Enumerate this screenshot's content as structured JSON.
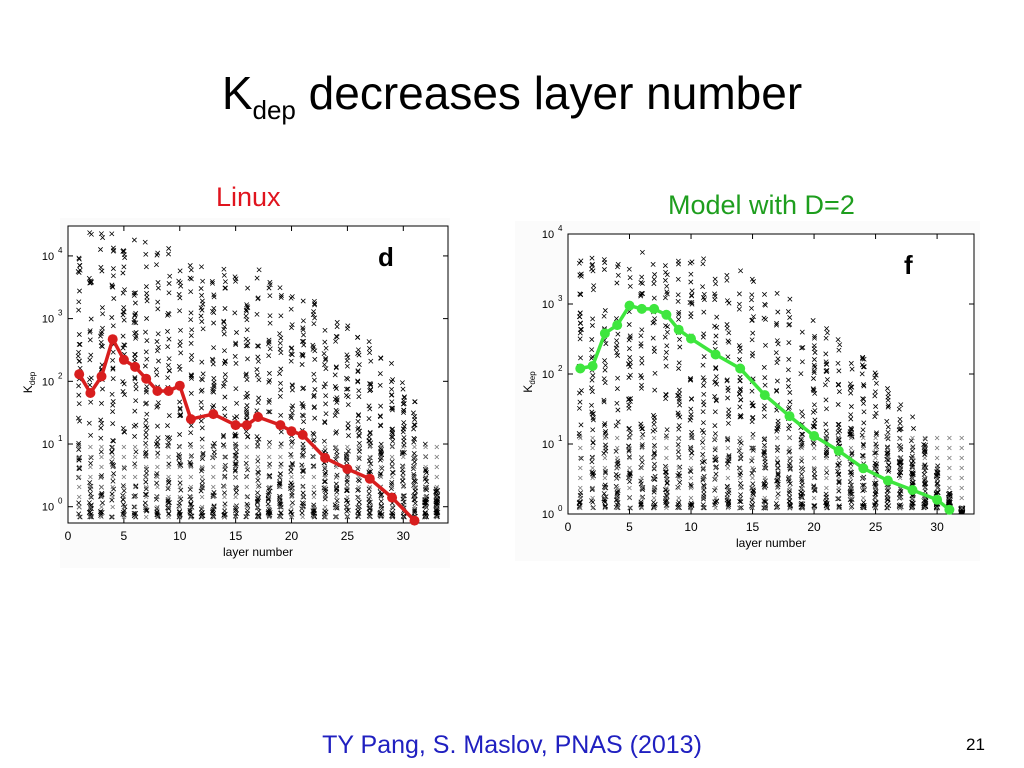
{
  "slide": {
    "title_main": "K",
    "title_sub": "dep",
    "title_rest": " decreases layer number",
    "footer": "TY Pang, S. Maslov, PNAS  (2013)",
    "page_number": "21"
  },
  "chart_data": [
    {
      "type": "scatter",
      "caption": "Linux",
      "caption_color": "#e0141e",
      "panel_label": "d",
      "xlabel": "layer number",
      "ylabel_main": "K",
      "ylabel_sub": "dep",
      "xlim": [
        0,
        34
      ],
      "ylim": [
        0.55,
        30000
      ],
      "log_y": true,
      "x_ticks": [
        0,
        5,
        10,
        15,
        20,
        25,
        30
      ],
      "y_ticks": [
        {
          "value": 1,
          "base": "10",
          "exp": "0"
        },
        {
          "value": 10,
          "base": "10",
          "exp": "1"
        },
        {
          "value": 100,
          "base": "10",
          "exp": "2"
        },
        {
          "value": 1000,
          "base": "10",
          "exp": "3"
        },
        {
          "value": 10000,
          "base": "10",
          "exp": "4"
        }
      ],
      "grid": false,
      "scatter_color": "#000000",
      "scatter_max": [
        25000,
        25000,
        25000,
        25000,
        25000,
        20000,
        18000,
        15000,
        14000,
        12000,
        11000,
        9000,
        8000,
        7000,
        6000,
        6000,
        6000,
        5000,
        4000,
        3000,
        2500,
        2000,
        1500,
        1000,
        900,
        700,
        500,
        300,
        200,
        100,
        50,
        10,
        2
      ],
      "series": [
        {
          "color": "#d81e1e",
          "x": [
            1,
            2,
            3,
            4,
            5,
            6,
            7,
            8,
            9,
            10,
            11,
            13,
            15,
            16,
            17,
            19,
            20,
            21,
            23,
            25,
            27,
            29,
            31
          ],
          "y": [
            130,
            65,
            120,
            470,
            220,
            170,
            110,
            70,
            70,
            85,
            25,
            30,
            20,
            20,
            27,
            20,
            16,
            14,
            6,
            4,
            2.8,
            1.4,
            0.6
          ]
        }
      ]
    },
    {
      "type": "scatter",
      "caption": "Model with D=2",
      "caption_color": "#1e9e1e",
      "panel_label": "f",
      "xlabel": "layer number",
      "ylabel_main": "K",
      "ylabel_sub": "dep",
      "xlim": [
        0,
        33
      ],
      "ylim": [
        1,
        10000
      ],
      "log_y": true,
      "x_ticks": [
        0,
        5,
        10,
        15,
        20,
        25,
        30
      ],
      "y_ticks": [
        {
          "value": 1,
          "base": "10",
          "exp": "0"
        },
        {
          "value": 10,
          "base": "10",
          "exp": "1"
        },
        {
          "value": 100,
          "base": "10",
          "exp": "2"
        },
        {
          "value": 1000,
          "base": "10",
          "exp": "3"
        },
        {
          "value": 10000,
          "base": "10",
          "exp": "4"
        }
      ],
      "grid": false,
      "scatter_color": "#000000",
      "scatter_max": [
        6000,
        6000,
        6000,
        6000,
        6000,
        6000,
        6000,
        5500,
        5000,
        5000,
        4500,
        4000,
        3500,
        3000,
        2500,
        2000,
        1500,
        1200,
        1000,
        700,
        500,
        350,
        250,
        180,
        120,
        80,
        50,
        25,
        12,
        5,
        2,
        1
      ],
      "series": [
        {
          "color": "#3ee63e",
          "x": [
            1,
            2,
            3,
            4,
            5,
            6,
            7,
            8,
            9,
            10,
            12,
            14,
            16,
            18,
            20,
            22,
            24,
            26,
            28,
            30,
            31
          ],
          "y": [
            120,
            130,
            380,
            500,
            950,
            850,
            850,
            700,
            430,
            320,
            190,
            120,
            50,
            25,
            13,
            8,
            4.5,
            3,
            2.2,
            1.6,
            1.15
          ]
        }
      ]
    }
  ]
}
